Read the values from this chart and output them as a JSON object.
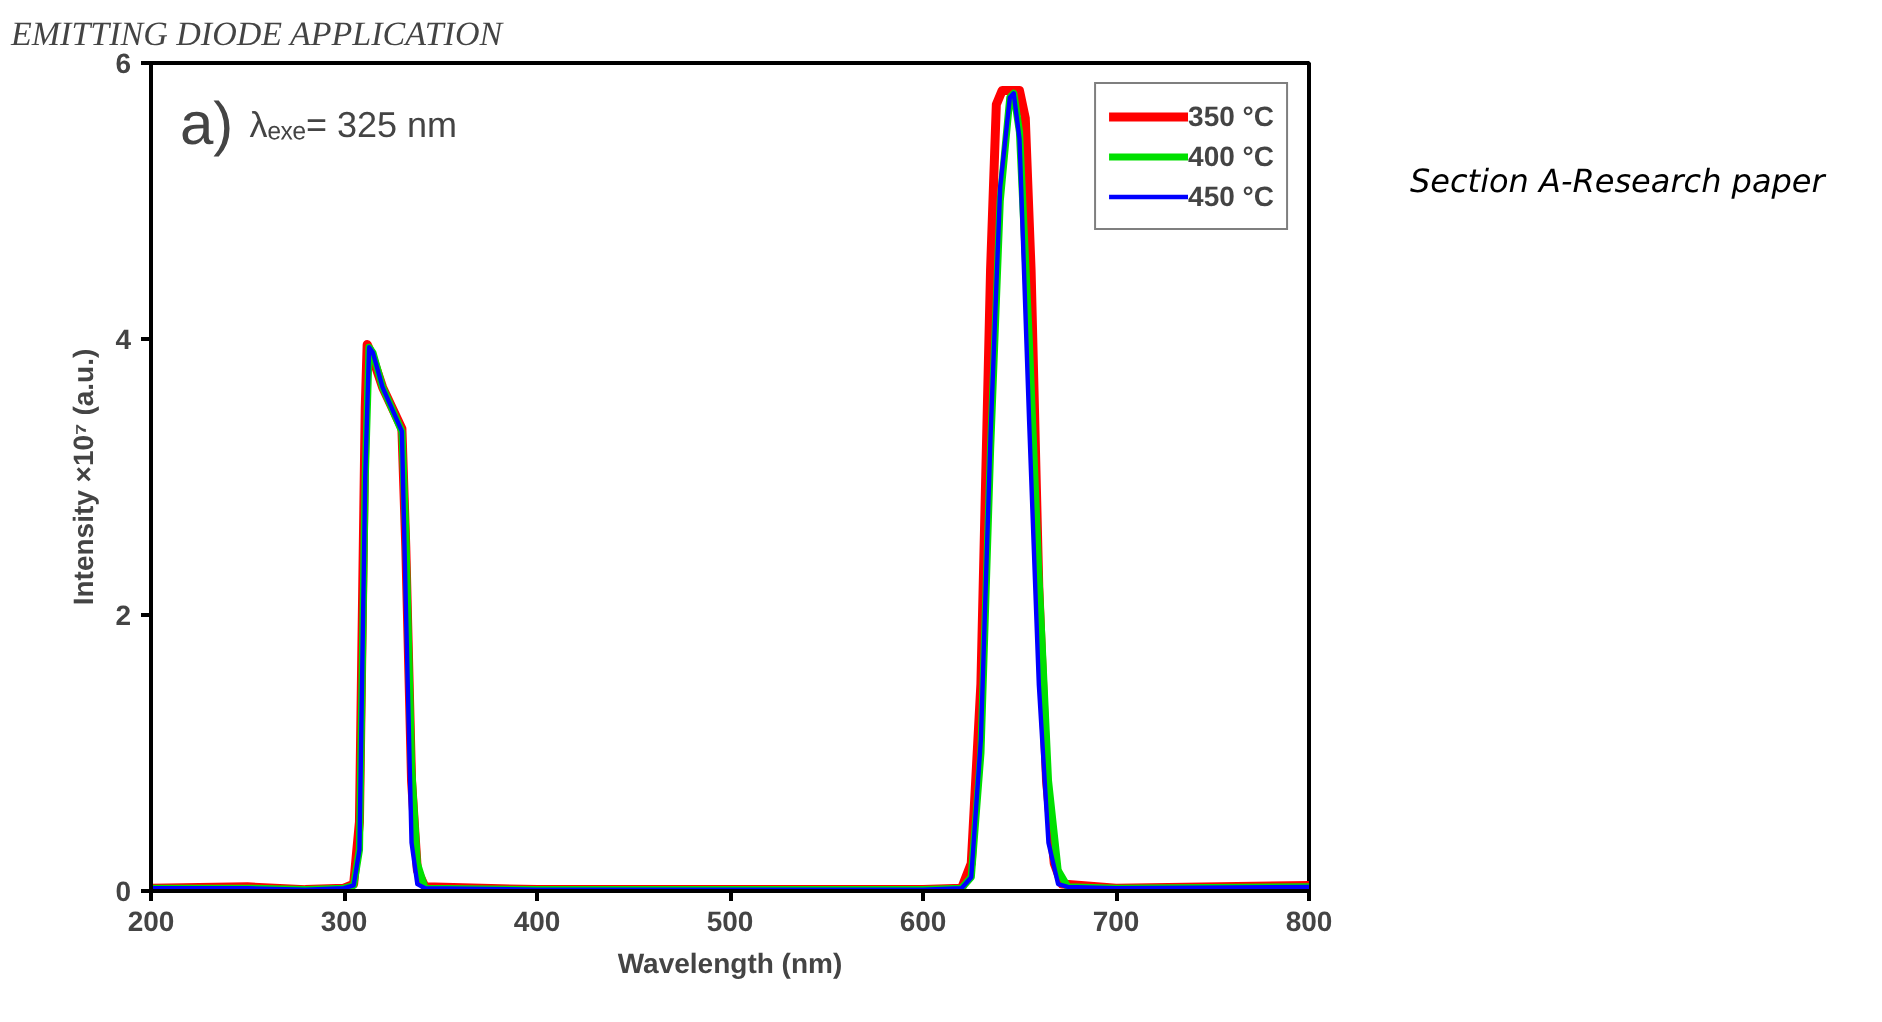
{
  "chart_data": {
    "type": "line",
    "title": "EMITTING DIODE APPLICATION",
    "xlabel": "Wavelength (nm)",
    "ylabel": "Intensity ×10⁷ (a.u.)",
    "annotations": [
      "a)",
      "λₑₓₑ= 325 nm",
      "Section A-Research paper"
    ],
    "xlim": [
      200,
      800
    ],
    "ylim": [
      0,
      6
    ],
    "xticks": [
      200,
      300,
      400,
      500,
      600,
      700,
      800
    ],
    "yticks": [
      0,
      2,
      4,
      6
    ],
    "legend": "top right",
    "grid": false,
    "marker": "none",
    "line_style": "solid",
    "series": [
      {
        "name": "350 °C",
        "color": "#ff0000",
        "x": [
          200,
          250,
          280,
          300,
          305,
          308,
          311,
          312,
          314,
          320,
          330,
          332,
          335,
          338,
          342,
          400,
          600,
          620,
          625,
          630,
          635,
          638,
          641,
          650,
          653,
          656,
          660,
          664,
          668,
          672,
          700,
          800
        ],
        "values": [
          0.02,
          0.03,
          0.01,
          0.02,
          0.05,
          0.5,
          3.5,
          3.96,
          3.9,
          3.65,
          3.35,
          2.5,
          0.8,
          0.15,
          0.03,
          0.01,
          0.01,
          0.02,
          0.2,
          1.5,
          4.5,
          5.7,
          5.8,
          5.8,
          5.6,
          4.5,
          2.2,
          0.8,
          0.2,
          0.05,
          0.02,
          0.04
        ]
      },
      {
        "name": "400 °C",
        "color": "#00e000",
        "x": [
          200,
          250,
          280,
          300,
          305,
          308,
          311,
          313,
          315,
          320,
          330,
          332,
          335,
          338,
          342,
          400,
          600,
          620,
          625,
          630,
          635,
          640,
          645,
          647,
          650,
          655,
          660,
          665,
          670,
          675,
          700,
          800
        ],
        "values": [
          0.02,
          0.02,
          0.01,
          0.02,
          0.04,
          0.3,
          3.0,
          3.94,
          3.9,
          3.65,
          3.33,
          2.6,
          0.9,
          0.2,
          0.02,
          0.01,
          0.01,
          0.02,
          0.1,
          1.0,
          3.2,
          5.0,
          5.75,
          5.78,
          5.5,
          4.0,
          2.3,
          0.8,
          0.15,
          0.03,
          0.02,
          0.03
        ]
      },
      {
        "name": "450 °C",
        "color": "#0000ff",
        "x": [
          200,
          250,
          280,
          300,
          305,
          308,
          311,
          313,
          315,
          320,
          330,
          332,
          335,
          338,
          342,
          400,
          600,
          620,
          625,
          630,
          635,
          640,
          645,
          647,
          650,
          655,
          660,
          665,
          670,
          675,
          700,
          800
        ],
        "values": [
          0.02,
          0.02,
          0.01,
          0.02,
          0.04,
          0.3,
          3.0,
          3.94,
          3.9,
          3.65,
          3.33,
          2.1,
          0.35,
          0.05,
          0.02,
          0.01,
          0.01,
          0.02,
          0.1,
          1.1,
          3.3,
          5.1,
          5.75,
          5.78,
          5.45,
          3.4,
          1.5,
          0.35,
          0.05,
          0.03,
          0.02,
          0.03
        ]
      }
    ]
  }
}
